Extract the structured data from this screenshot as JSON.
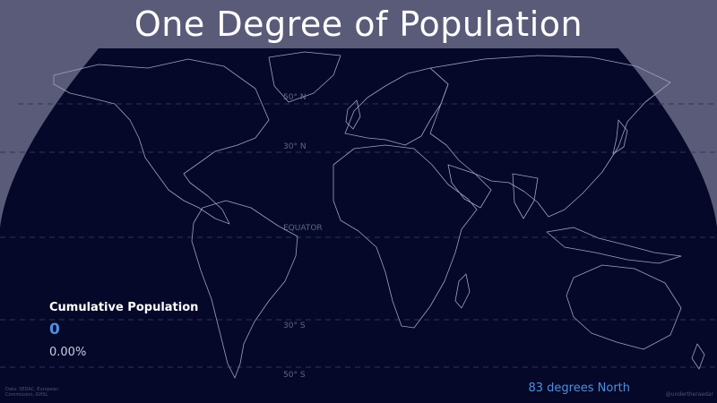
{
  "title": "One Degree of Population",
  "map": {
    "projection": "Robinson",
    "background_color": "#060829",
    "coastline_color": "#9aa3bf",
    "gridline_color": "#2c3456",
    "latitude_labels": [
      "50° N",
      "30° N",
      "EQUATOR",
      "30° S",
      "50° S"
    ]
  },
  "stats": {
    "label": "Cumulative Population",
    "count": "0",
    "percent": "0.00%"
  },
  "status": "83 degrees North",
  "credits": {
    "source": "Data: SEDAC, European Commission, GHSL",
    "handle": "@undertheraedar"
  }
}
